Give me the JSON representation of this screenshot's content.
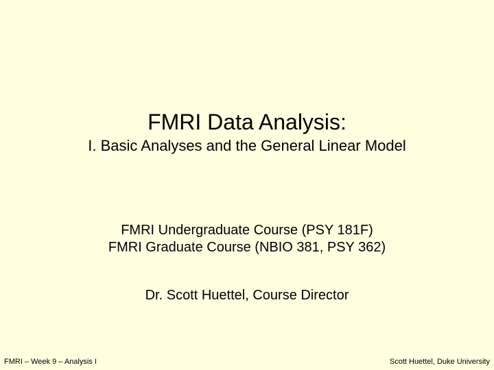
{
  "slide": {
    "background_color": "#ffffe0",
    "text_color": "#000000",
    "title": {
      "text": "FMRI Data Analysis:",
      "fontsize": 32,
      "font_family": "Trebuchet MS"
    },
    "subtitle": {
      "text": "I. Basic Analyses and the General Linear Model",
      "fontsize": 22,
      "font_family": "Trebuchet MS"
    },
    "course_line_1": {
      "text": "FMRI Undergraduate Course (PSY 181F)",
      "fontsize": 20,
      "font_family": "Trebuchet MS"
    },
    "course_line_2": {
      "text": "FMRI Graduate Course (NBIO 381, PSY 362)",
      "fontsize": 20,
      "font_family": "Trebuchet MS"
    },
    "instructor": {
      "text": "Dr. Scott Huettel, Course Director",
      "fontsize": 20,
      "font_family": "Trebuchet MS"
    },
    "footer_left": {
      "text": "FMRI – Week 9 – Analysis I",
      "fontsize": 11,
      "font_family": "Arial"
    },
    "footer_right": {
      "text": "Scott Huettel, Duke University",
      "fontsize": 11,
      "font_family": "Arial"
    }
  }
}
